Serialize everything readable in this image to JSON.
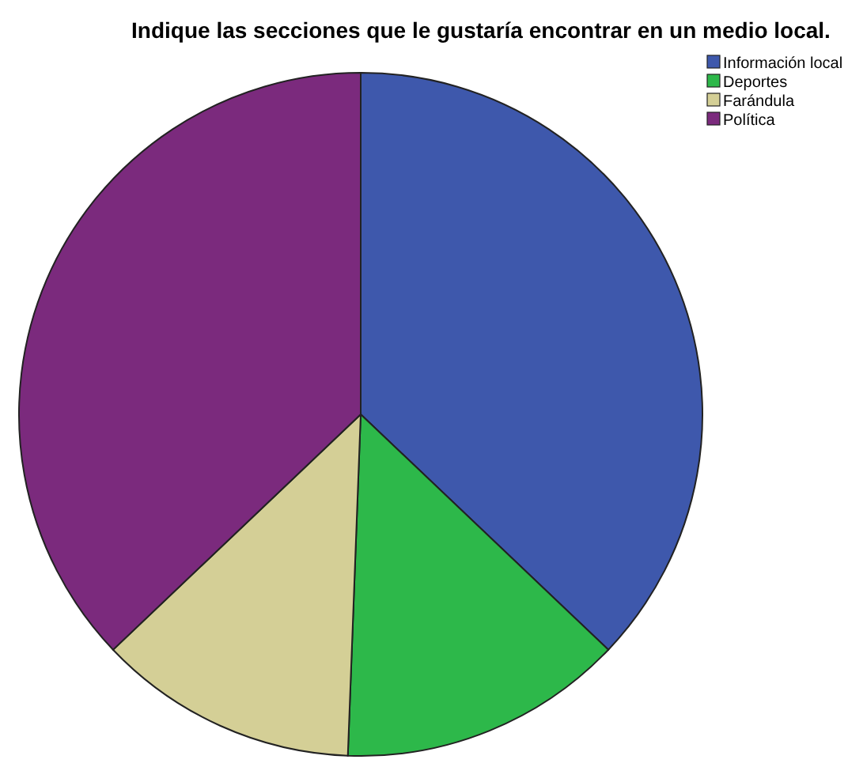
{
  "chart_data": {
    "type": "pie",
    "title": "Indique las secciones que le gustaría encontrar en un medio local.",
    "categories": [
      "Información local",
      "Deportes",
      "Farándula",
      "Política"
    ],
    "values": [
      37.1,
      13.5,
      12.3,
      37.1
    ],
    "colors": [
      "#3e58ac",
      "#2db84a",
      "#d4cf96",
      "#7b2a7d"
    ],
    "legend": "top right"
  }
}
